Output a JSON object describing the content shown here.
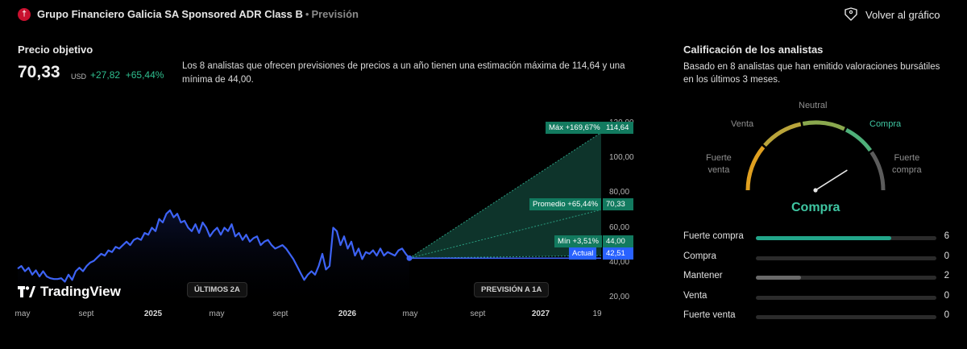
{
  "header": {
    "logo_glyph": "†",
    "title": "Grupo Financiero Galicia SA Sponsored ADR Class B",
    "separator": "•",
    "subtitle": "Previsión",
    "back_label": "Volver al gráfico",
    "back_icon": "tag-icon"
  },
  "target": {
    "section_title": "Precio objetivo",
    "price": "70,33",
    "currency": "USD",
    "change_abs": "+27,82",
    "change_pct": "+65,44%",
    "description": "Los 8 analistas que ofrecen previsiones de precios a un año tienen una estimación máxima de 114,64 y una mínima de 44,00."
  },
  "chart": {
    "brand": "TradingView",
    "pill_history": "ÚLTIMOS 2A",
    "pill_forecast": "PREVISIÓN A 1A",
    "x_ticks": [
      {
        "label": "may",
        "bold": false
      },
      {
        "label": "sept",
        "bold": false
      },
      {
        "label": "2025",
        "bold": true
      },
      {
        "label": "may",
        "bold": false
      },
      {
        "label": "sept",
        "bold": false
      },
      {
        "label": "2026",
        "bold": true
      },
      {
        "label": "may",
        "bold": false
      },
      {
        "label": "sept",
        "bold": false
      },
      {
        "label": "2027",
        "bold": true
      },
      {
        "label": "19",
        "bold": false
      }
    ],
    "y_ticks": [
      "120,00",
      "100,00",
      "80,00",
      "60,00",
      "40,00",
      "20,00"
    ],
    "tags": {
      "max_label": "Máx +169,67%",
      "max_value": "114,64",
      "avg_label": "Promedio +65,44%",
      "avg_value": "70,33",
      "min_label": "Mín +3,51%",
      "min_value": "44,00",
      "current_label": "Actual",
      "current_value": "42,51"
    },
    "colors": {
      "history_line": "#3d63f5",
      "forecast_fill": "#0f3a30",
      "tag_green": "#127a5f",
      "tag_blue": "#2962ff"
    }
  },
  "chart_data": {
    "type": "line",
    "title": "",
    "xlabel": "",
    "ylabel": "",
    "ylim": [
      15,
      125
    ],
    "series": [
      {
        "values": [
          36.5,
          38,
          35,
          37,
          33,
          35.5,
          32,
          35,
          32,
          31,
          30.5,
          30.5,
          31,
          29,
          33,
          30,
          35,
          37,
          35,
          38,
          40,
          41,
          43,
          45,
          44,
          47,
          46,
          49,
          48,
          50,
          52,
          50,
          53,
          54,
          53,
          57,
          56,
          60,
          58,
          65,
          63,
          68,
          70,
          66,
          68,
          63,
          64,
          60,
          58,
          62,
          57,
          63,
          60,
          55,
          58,
          60,
          56,
          60,
          58,
          62,
          55,
          57,
          53,
          56,
          52,
          54,
          55,
          50,
          52,
          53,
          50,
          48,
          49,
          50,
          48,
          45,
          42,
          38,
          34,
          30,
          33,
          35,
          33,
          38,
          45,
          36,
          38,
          60,
          58,
          50,
          55,
          48,
          52,
          44,
          48,
          42,
          46,
          45,
          47,
          44,
          48,
          44,
          46,
          45,
          44,
          47,
          48,
          45,
          42.51
        ]
      }
    ],
    "forecast": {
      "current": 42.51,
      "max": 114.64,
      "average": 70.33,
      "min": 44.0
    }
  },
  "rating": {
    "section_title": "Calificación de los analistas",
    "description": "Basado en 8 analistas que han emitido valoraciones bursátiles en los últimos 3 meses.",
    "gauge_labels": {
      "strong_sell": "Fuerte\nventa",
      "sell": "Venta",
      "neutral": "Neutral",
      "buy": "Compra",
      "strong_buy": "Fuerte\ncompra"
    },
    "result": "Compra",
    "needle_value": 0.82,
    "rows": [
      {
        "label": "Fuerte compra",
        "count": "6",
        "fraction": 0.75,
        "color": "#22a68a"
      },
      {
        "label": "Compra",
        "count": "0",
        "fraction": 0,
        "color": "#22a68a"
      },
      {
        "label": "Mantener",
        "count": "2",
        "fraction": 0.25,
        "color": "#6a6a6a"
      },
      {
        "label": "Venta",
        "count": "0",
        "fraction": 0,
        "color": "#6a6a6a"
      },
      {
        "label": "Fuerte venta",
        "count": "0",
        "fraction": 0,
        "color": "#6a6a6a"
      }
    ]
  }
}
